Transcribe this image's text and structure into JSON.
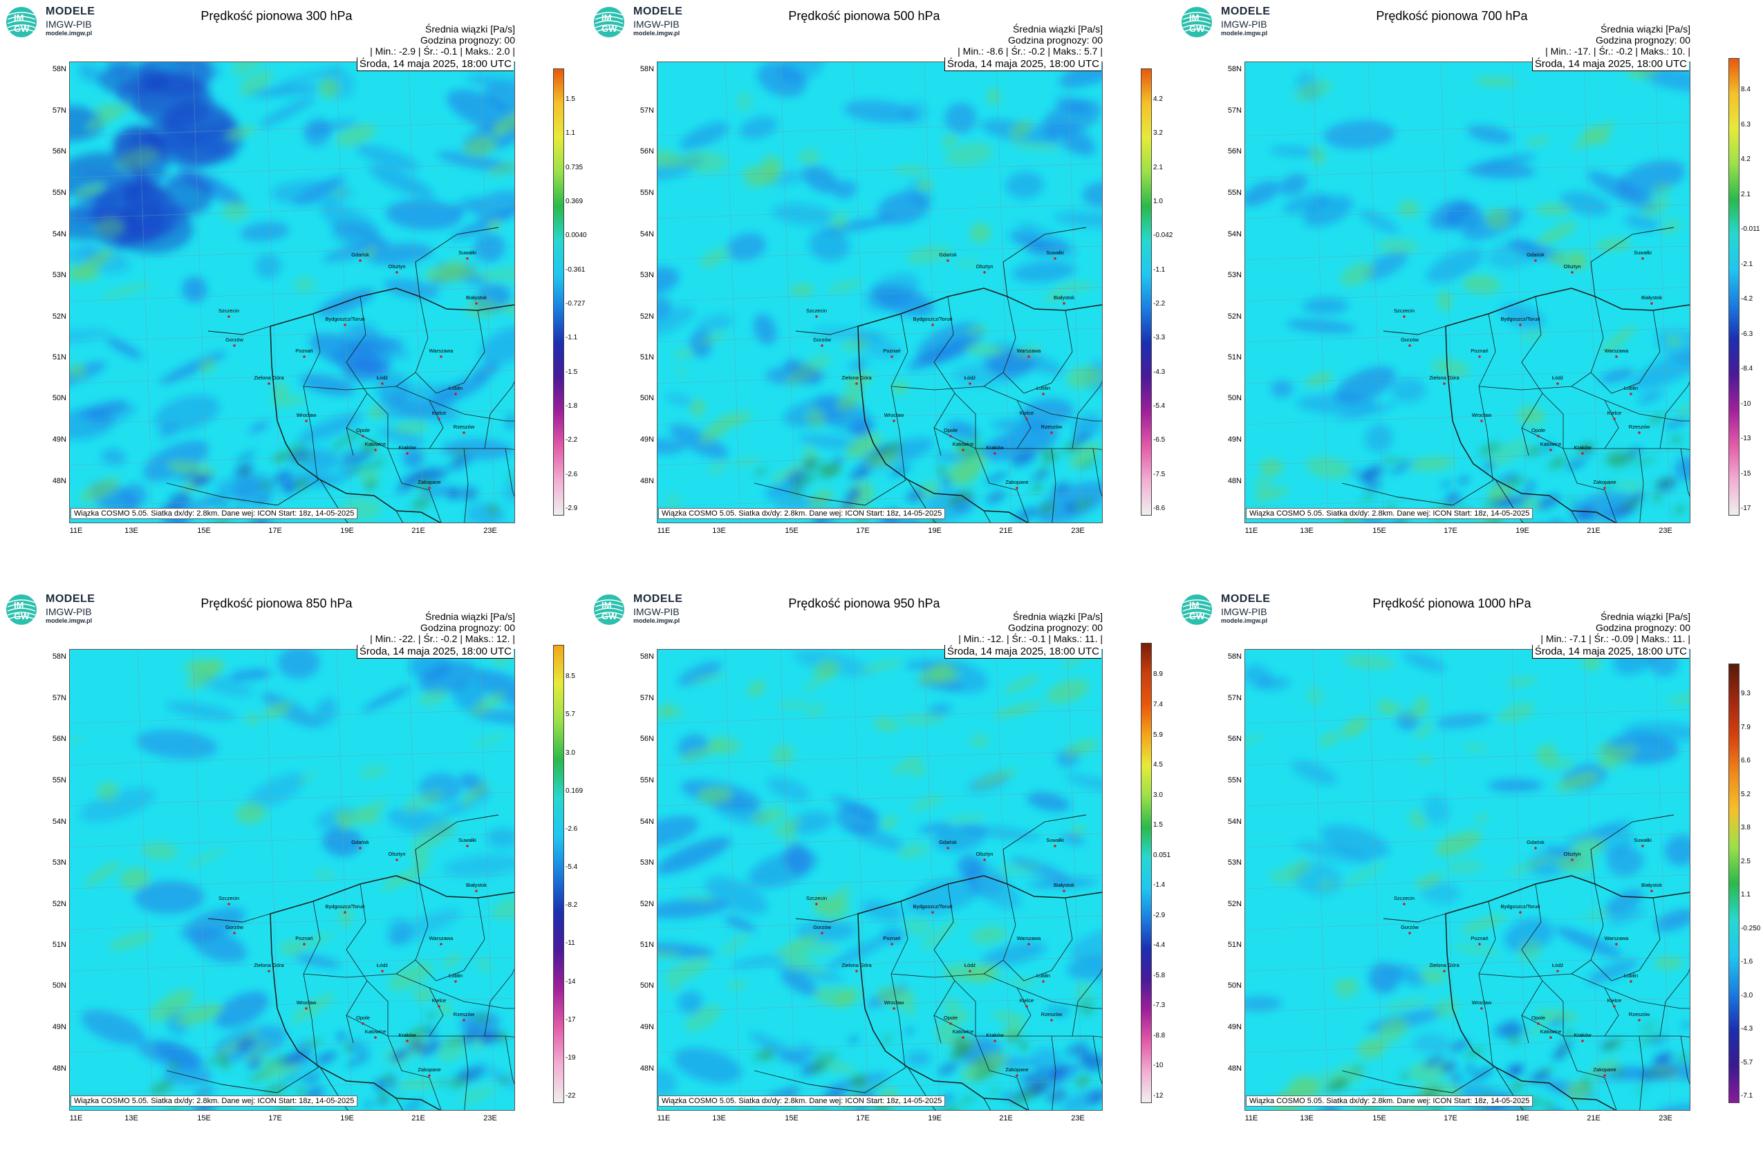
{
  "logo": {
    "line1": "MODELE",
    "line2": "IMGW-PIB",
    "line3": "modele.imgw.pl",
    "badge_top": "IM",
    "badge_bottom": "GW"
  },
  "common": {
    "header1": "Średnia wiązki [Pa/s]",
    "header2": "Godzina prognozy: 00",
    "date": "Środa, 14 maja 2025, 18:00 UTC",
    "footnote": "Wiązka COSMO 5.05. Siatka dx/dy: 2.8km. Dane wej: ICON Start: 18z, 14-05-2025",
    "lat_labels": [
      "58N",
      "57N",
      "56N",
      "55N",
      "54N",
      "53N",
      "52N",
      "51N",
      "50N",
      "49N",
      "48N"
    ],
    "lon_labels": [
      "11E",
      "13E",
      "15E",
      "17E",
      "19E",
      "21E",
      "23E"
    ],
    "cities": [
      "Gdańsk",
      "Suwałki",
      "Olsztyn",
      "Szczecin",
      "Białystok",
      "Bydgoszcz/Toruń",
      "Gorzów",
      "Poznań",
      "Warszawa",
      "Zielona Góra",
      "Łódź",
      "Lublin",
      "Wrocław",
      "Kielce",
      "Opole",
      "Katowice",
      "Kraków",
      "Rzeszów",
      "Zakopane"
    ]
  },
  "colors": {
    "field_base": "#20e0f0",
    "field_blue": "#1e78e6",
    "field_green": "#5fd47c",
    "border_line": "#1a1a1a"
  },
  "panels": [
    {
      "title": "Prędkość pionowa 300 hPa",
      "stats": "| Min.: -2.9 | Śr.: -0.1 | Maks.: 2.0 |",
      "colorbar_labels": [
        "1.5",
        "1.1",
        "0.735",
        "0.369",
        "0.0040",
        "-0.361",
        "-0.727",
        "-1.1",
        "-1.5",
        "-1.8",
        "-2.2",
        "-2.6",
        "-2.9"
      ]
    },
    {
      "title": "Prędkość pionowa 500 hPa",
      "stats": "| Min.: -8.6 | Śr.: -0.2 | Maks.: 5.7 |",
      "colorbar_labels": [
        "4.2",
        "3.2",
        "2.1",
        "1.0",
        "-0.042",
        "-1.1",
        "-2.2",
        "-3.3",
        "-4.3",
        "-5.4",
        "-6.5",
        "-7.5",
        "-8.6"
      ]
    },
    {
      "title": "Prędkość pionowa 700 hPa",
      "stats": "| Min.: -17. | Śr.: -0.2 | Maks.: 10. |",
      "colorbar_labels": [
        "8.4",
        "6.3",
        "4.2",
        "2.1",
        "-0.011",
        "-2.1",
        "-4.2",
        "-6.3",
        "-8.4",
        "-10",
        "-13",
        "-15",
        "-17"
      ]
    },
    {
      "title": "Prędkość pionowa 850 hPa",
      "stats": "| Min.: -22. | Śr.: -0.2 | Maks.: 12. |",
      "colorbar_labels": [
        "8.5",
        "5.7",
        "3.0",
        "0.169",
        "-2.6",
        "-5.4",
        "-8.2",
        "-11",
        "-14",
        "-17",
        "-19",
        "-22"
      ]
    },
    {
      "title": "Prędkość pionowa 950 hPa",
      "stats": "| Min.: -12. | Śr.: -0.1 | Maks.: 11. |",
      "colorbar_labels": [
        "8.9",
        "7.4",
        "5.9",
        "4.5",
        "3.0",
        "1.5",
        "0.051",
        "-1.4",
        "-2.9",
        "-4.4",
        "-5.8",
        "-7.3",
        "-8.8",
        "-10",
        "-12"
      ]
    },
    {
      "title": "Prędkość pionowa 1000 hPa",
      "stats": "| Min.: -7.1 | Śr.: -0.09 | Maks.: 11. |",
      "colorbar_labels": [
        "9.3",
        "7.9",
        "6.6",
        "5.2",
        "3.8",
        "2.5",
        "1.1",
        "-0.250",
        "-1.6",
        "-3.0",
        "-4.3",
        "-5.7",
        "-7.1"
      ]
    }
  ]
}
